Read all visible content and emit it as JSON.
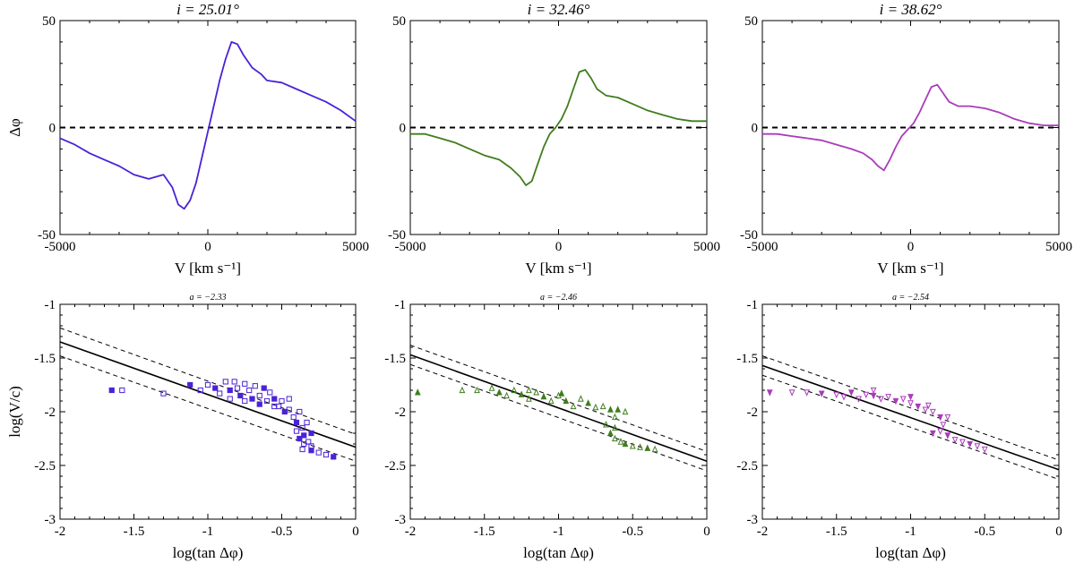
{
  "figure": {
    "top_row": {
      "x_label": "V [km s⁻¹]",
      "y_label": "Δφ",
      "xlim": [
        -5000,
        5000
      ],
      "ylim": [
        -50,
        50
      ],
      "x_ticks": [
        "-5000",
        "0",
        "5000"
      ],
      "y_ticks": [
        "50",
        "0",
        "-50"
      ]
    },
    "bottom_row": {
      "x_label": "log(tan Δφ)",
      "y_label": "log(V/c)",
      "xlim": [
        -2,
        0
      ],
      "ylim": [
        -3,
        -1
      ],
      "x_ticks": [
        "-2",
        "-1.5",
        "-1",
        "-0.5",
        "0"
      ],
      "y_ticks": [
        "-1",
        "-1.5",
        "-2",
        "-2.5",
        "-3"
      ]
    }
  },
  "chart_data": [
    {
      "type": "line",
      "title": "i = 25.01°",
      "color": "#4b22d6",
      "xlim": [
        -5000,
        5000
      ],
      "ylim": [
        -50,
        50
      ],
      "reference_line_y": 0,
      "x": [
        -5000,
        -4500,
        -4000,
        -3500,
        -3000,
        -2500,
        -2000,
        -1500,
        -1200,
        -1000,
        -800,
        -600,
        -400,
        -200,
        0,
        200,
        400,
        600,
        800,
        1000,
        1200,
        1500,
        1800,
        2000,
        2500,
        3000,
        3500,
        4000,
        4500,
        5000
      ],
      "y": [
        -5,
        -8,
        -12,
        -15,
        -18,
        -22,
        -24,
        -22,
        -28,
        -36,
        -38,
        -34,
        -26,
        -14,
        -2,
        10,
        22,
        32,
        40,
        39,
        34,
        28,
        25,
        22,
        21,
        18,
        15,
        12,
        8,
        3
      ]
    },
    {
      "type": "line",
      "title": "i = 32.46°",
      "color": "#3f7d1c",
      "xlim": [
        -5000,
        5000
      ],
      "ylim": [
        -50,
        50
      ],
      "reference_line_y": 0,
      "x": [
        -5000,
        -4500,
        -4000,
        -3500,
        -3000,
        -2500,
        -2000,
        -1600,
        -1300,
        -1100,
        -900,
        -700,
        -500,
        -300,
        -100,
        100,
        300,
        500,
        700,
        900,
        1100,
        1300,
        1600,
        2000,
        2500,
        3000,
        3500,
        4000,
        4500,
        5000
      ],
      "y": [
        -3,
        -3,
        -5,
        -7,
        -10,
        -13,
        -15,
        -19,
        -23,
        -27,
        -25,
        -17,
        -9,
        -3,
        0,
        4,
        10,
        18,
        26,
        27,
        23,
        18,
        15,
        14,
        11,
        8,
        6,
        4,
        3,
        3
      ]
    },
    {
      "type": "line",
      "title": "i = 38.62°",
      "color": "#a93cb9",
      "xlim": [
        -5000,
        5000
      ],
      "ylim": [
        -50,
        50
      ],
      "reference_line_y": 0,
      "x": [
        -5000,
        -4500,
        -4000,
        -3500,
        -3000,
        -2500,
        -2000,
        -1600,
        -1300,
        -1100,
        -900,
        -700,
        -500,
        -300,
        -100,
        100,
        300,
        500,
        700,
        900,
        1100,
        1300,
        1600,
        2000,
        2500,
        3000,
        3500,
        4000,
        4500,
        5000
      ],
      "y": [
        -3,
        -3,
        -4,
        -5,
        -6,
        -8,
        -10,
        -12,
        -15,
        -18,
        -20,
        -15,
        -9,
        -4,
        -1,
        2,
        7,
        13,
        19,
        20,
        16,
        12,
        10,
        10,
        9,
        7,
        4,
        2,
        1,
        1
      ]
    },
    {
      "type": "scatter",
      "title": "a = −2.33",
      "color": "#4b22d6",
      "marker": "square",
      "xlim": [
        -2,
        0
      ],
      "ylim": [
        -3,
        -1
      ],
      "fit_line": {
        "x": [
          -2,
          0
        ],
        "y": [
          -1.35,
          -2.33
        ]
      },
      "fit_band": {
        "upper": [
          -1.22,
          -2.21
        ],
        "lower": [
          -1.48,
          -2.46
        ]
      },
      "points": [
        [
          -1.65,
          -1.8
        ],
        [
          -1.58,
          -1.8
        ],
        [
          -1.3,
          -1.83
        ],
        [
          -1.12,
          -1.75
        ],
        [
          -1.05,
          -1.8
        ],
        [
          -1.0,
          -1.75
        ],
        [
          -0.95,
          -1.78
        ],
        [
          -0.92,
          -1.83
        ],
        [
          -0.88,
          -1.72
        ],
        [
          -0.85,
          -1.8
        ],
        [
          -0.82,
          -1.72
        ],
        [
          -0.8,
          -1.78
        ],
        [
          -0.78,
          -1.85
        ],
        [
          -0.75,
          -1.74
        ],
        [
          -0.72,
          -1.8
        ],
        [
          -0.7,
          -1.88
        ],
        [
          -0.68,
          -1.76
        ],
        [
          -0.65,
          -1.85
        ],
        [
          -0.62,
          -1.78
        ],
        [
          -0.6,
          -1.9
        ],
        [
          -0.58,
          -1.82
        ],
        [
          -0.55,
          -1.88
        ],
        [
          -0.52,
          -1.95
        ],
        [
          -0.5,
          -1.9
        ],
        [
          -0.48,
          -2.0
        ],
        [
          -0.45,
          -1.98
        ],
        [
          -0.42,
          -2.05
        ],
        [
          -0.4,
          -2.1
        ],
        [
          -0.38,
          -2.0
        ],
        [
          -0.36,
          -2.15
        ],
        [
          -0.35,
          -2.22
        ],
        [
          -0.33,
          -2.1
        ],
        [
          -0.32,
          -2.28
        ],
        [
          -0.3,
          -2.2
        ],
        [
          -0.3,
          -2.32
        ],
        [
          -0.35,
          -2.3
        ],
        [
          -0.38,
          -2.25
        ],
        [
          -0.4,
          -2.18
        ],
        [
          -0.36,
          -2.35
        ],
        [
          -0.3,
          -2.36
        ],
        [
          -0.25,
          -2.38
        ],
        [
          -0.2,
          -2.4
        ],
        [
          -0.15,
          -2.42
        ],
        [
          -0.45,
          -1.88
        ],
        [
          -0.55,
          -1.95
        ],
        [
          -0.65,
          -1.93
        ],
        [
          -0.75,
          -1.9
        ],
        [
          -0.85,
          -1.88
        ]
      ]
    },
    {
      "type": "scatter",
      "title": "a = −2.46",
      "color": "#3f7d1c",
      "marker": "triangle-up",
      "xlim": [
        -2,
        0
      ],
      "ylim": [
        -3,
        -1
      ],
      "fit_line": {
        "x": [
          -2,
          0
        ],
        "y": [
          -1.47,
          -2.46
        ]
      },
      "fit_band": {
        "upper": [
          -1.38,
          -2.37
        ],
        "lower": [
          -1.56,
          -2.55
        ]
      },
      "points": [
        [
          -1.95,
          -1.82
        ],
        [
          -1.65,
          -1.8
        ],
        [
          -1.55,
          -1.8
        ],
        [
          -1.4,
          -1.82
        ],
        [
          -1.35,
          -1.85
        ],
        [
          -1.3,
          -1.8
        ],
        [
          -1.25,
          -1.84
        ],
        [
          -1.2,
          -1.88
        ],
        [
          -1.15,
          -1.82
        ],
        [
          -1.1,
          -1.86
        ],
        [
          -1.05,
          -1.9
        ],
        [
          -1.0,
          -1.85
        ],
        [
          -0.95,
          -1.9
        ],
        [
          -0.9,
          -1.95
        ],
        [
          -0.85,
          -1.88
        ],
        [
          -0.8,
          -1.92
        ],
        [
          -0.75,
          -1.96
        ],
        [
          -0.7,
          -1.95
        ],
        [
          -0.65,
          -1.98
        ],
        [
          -0.62,
          -2.05
        ],
        [
          -0.62,
          -2.15
        ],
        [
          -0.65,
          -2.2
        ],
        [
          -0.62,
          -2.25
        ],
        [
          -0.58,
          -2.28
        ],
        [
          -0.55,
          -2.3
        ],
        [
          -0.5,
          -2.32
        ],
        [
          -0.45,
          -2.33
        ],
        [
          -0.4,
          -2.34
        ],
        [
          -0.35,
          -2.35
        ],
        [
          -0.55,
          -2.0
        ],
        [
          -0.6,
          -1.98
        ],
        [
          -1.45,
          -1.78
        ],
        [
          -1.2,
          -1.8
        ],
        [
          -0.98,
          -1.83
        ],
        [
          -0.68,
          -2.12
        ]
      ]
    },
    {
      "type": "scatter",
      "title": "a = −2.54",
      "color": "#a93cb9",
      "marker": "triangle-down",
      "xlim": [
        -2,
        0
      ],
      "ylim": [
        -3,
        -1
      ],
      "fit_line": {
        "x": [
          -2,
          0
        ],
        "y": [
          -1.57,
          -2.54
        ]
      },
      "fit_band": {
        "upper": [
          -1.48,
          -2.45
        ],
        "lower": [
          -1.66,
          -2.63
        ]
      },
      "points": [
        [
          -1.95,
          -1.82
        ],
        [
          -1.8,
          -1.82
        ],
        [
          -1.7,
          -1.82
        ],
        [
          -1.6,
          -1.83
        ],
        [
          -1.5,
          -1.84
        ],
        [
          -1.45,
          -1.86
        ],
        [
          -1.4,
          -1.82
        ],
        [
          -1.35,
          -1.88
        ],
        [
          -1.3,
          -1.84
        ],
        [
          -1.25,
          -1.85
        ],
        [
          -1.2,
          -1.88
        ],
        [
          -1.15,
          -1.86
        ],
        [
          -1.1,
          -1.9
        ],
        [
          -1.05,
          -1.88
        ],
        [
          -1.0,
          -1.92
        ],
        [
          -0.95,
          -1.95
        ],
        [
          -0.9,
          -1.98
        ],
        [
          -0.85,
          -2.0
        ],
        [
          -0.8,
          -2.05
        ],
        [
          -0.78,
          -2.12
        ],
        [
          -0.8,
          -2.18
        ],
        [
          -0.75,
          -2.22
        ],
        [
          -0.7,
          -2.26
        ],
        [
          -0.65,
          -2.28
        ],
        [
          -0.6,
          -2.3
        ],
        [
          -0.55,
          -2.32
        ],
        [
          -0.5,
          -2.35
        ],
        [
          -0.85,
          -2.2
        ],
        [
          -0.75,
          -2.05
        ],
        [
          -1.25,
          -1.8
        ],
        [
          -1.0,
          -1.86
        ],
        [
          -0.88,
          -1.94
        ]
      ]
    }
  ]
}
